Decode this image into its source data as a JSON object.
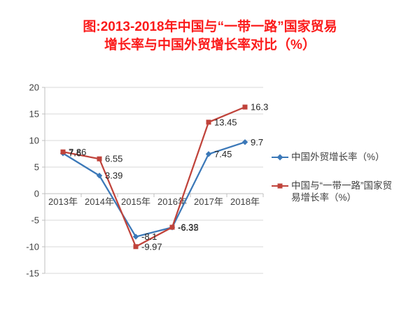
{
  "title": {
    "line1": "图:2013-2018年中国与“一带一路”国家贸易",
    "line2": "增长率与中国外贸增长率对比（%）",
    "color": "#fb1b1b"
  },
  "legend": {
    "items": [
      {
        "label": "中国外贸增长率（%）",
        "marker": "line-with-diamond"
      },
      {
        "label": "中国与“一带一路”国家贸易增长率（%）",
        "marker": "line-with-square"
      }
    ]
  },
  "chart_data": {
    "type": "line",
    "categories": [
      "2013年",
      "2014年",
      "2015年",
      "2016年",
      "2017年",
      "2018年"
    ],
    "series": [
      {
        "name": "中国外贸增长率（%）",
        "color": "#3b78b8",
        "marker": "diamond",
        "values": [
          7.6,
          3.39,
          -8.1,
          -6.35,
          7.45,
          9.7
        ],
        "labels": [
          "7.6",
          "3.39",
          "-8.1",
          "-6.35",
          "7.45",
          "9.7"
        ]
      },
      {
        "name": "中国与“一带一路”国家贸易增长率（%）",
        "color": "#c0433b",
        "marker": "square",
        "values": [
          7.86,
          6.55,
          -9.97,
          -6.32,
          13.45,
          16.3
        ],
        "labels": [
          "7.86",
          "6.55",
          "-9.97",
          "-6.32",
          "13.45",
          "16.3"
        ]
      }
    ],
    "ylim": [
      -15,
      20
    ],
    "ytick_step": 5,
    "yticks": [
      "-15",
      "-10",
      "-5",
      "0",
      "5",
      "10",
      "15",
      "20"
    ],
    "grid": true,
    "gridline_color": "#d9d9d9",
    "axis_color": "#bfbfbf",
    "legend_position": "right",
    "data_labels": "right-of-point"
  }
}
